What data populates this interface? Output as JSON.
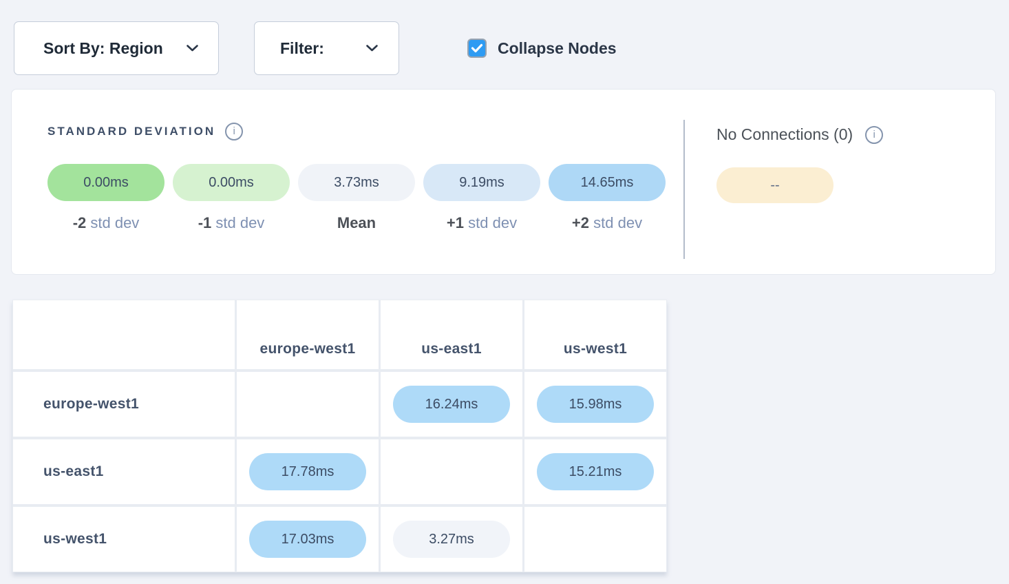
{
  "toolbar": {
    "sort_by": {
      "label": "Sort By: Region"
    },
    "filter": {
      "label": "Filter:"
    },
    "collapse_nodes": {
      "label": "Collapse Nodes",
      "checked": true
    }
  },
  "icons": {
    "info_glyph": "i"
  },
  "legend": {
    "title": "STANDARD DEVIATION",
    "items": [
      {
        "value": "0.00ms",
        "prefix": "-2",
        "suffix": "std dev",
        "color": "#a3e39c"
      },
      {
        "value": "0.00ms",
        "prefix": "-1",
        "suffix": "std dev",
        "color": "#d6f2d0"
      },
      {
        "value": "3.73ms",
        "prefix": "Mean",
        "suffix": "",
        "color": "#f0f3f8"
      },
      {
        "value": "9.19ms",
        "prefix": "+1",
        "suffix": "std dev",
        "color": "#d8e8f7"
      },
      {
        "value": "14.65ms",
        "prefix": "+2",
        "suffix": "std dev",
        "color": "#aed8f6"
      }
    ],
    "no_connections": {
      "title": "No Connections (0)",
      "pill_value": "--",
      "pill_color": "#fbeed2"
    }
  },
  "matrix": {
    "columns": [
      "europe-west1",
      "us-east1",
      "us-west1"
    ],
    "rows": [
      {
        "label": "europe-west1",
        "cells": [
          null,
          {
            "value": "16.24ms",
            "type": "blue"
          },
          {
            "value": "15.98ms",
            "type": "blue"
          }
        ]
      },
      {
        "label": "us-east1",
        "cells": [
          {
            "value": "17.78ms",
            "type": "blue"
          },
          null,
          {
            "value": "15.21ms",
            "type": "blue"
          }
        ]
      },
      {
        "label": "us-west1",
        "cells": [
          {
            "value": "17.03ms",
            "type": "blue"
          },
          {
            "value": "3.27ms",
            "type": "gray"
          },
          null
        ]
      }
    ]
  },
  "colors": {
    "blue_pill": "#aedaf8",
    "gray_pill": "#f1f4f9",
    "checkbox_accent": "#2e9bf3",
    "page_background": "#f1f3f8"
  }
}
